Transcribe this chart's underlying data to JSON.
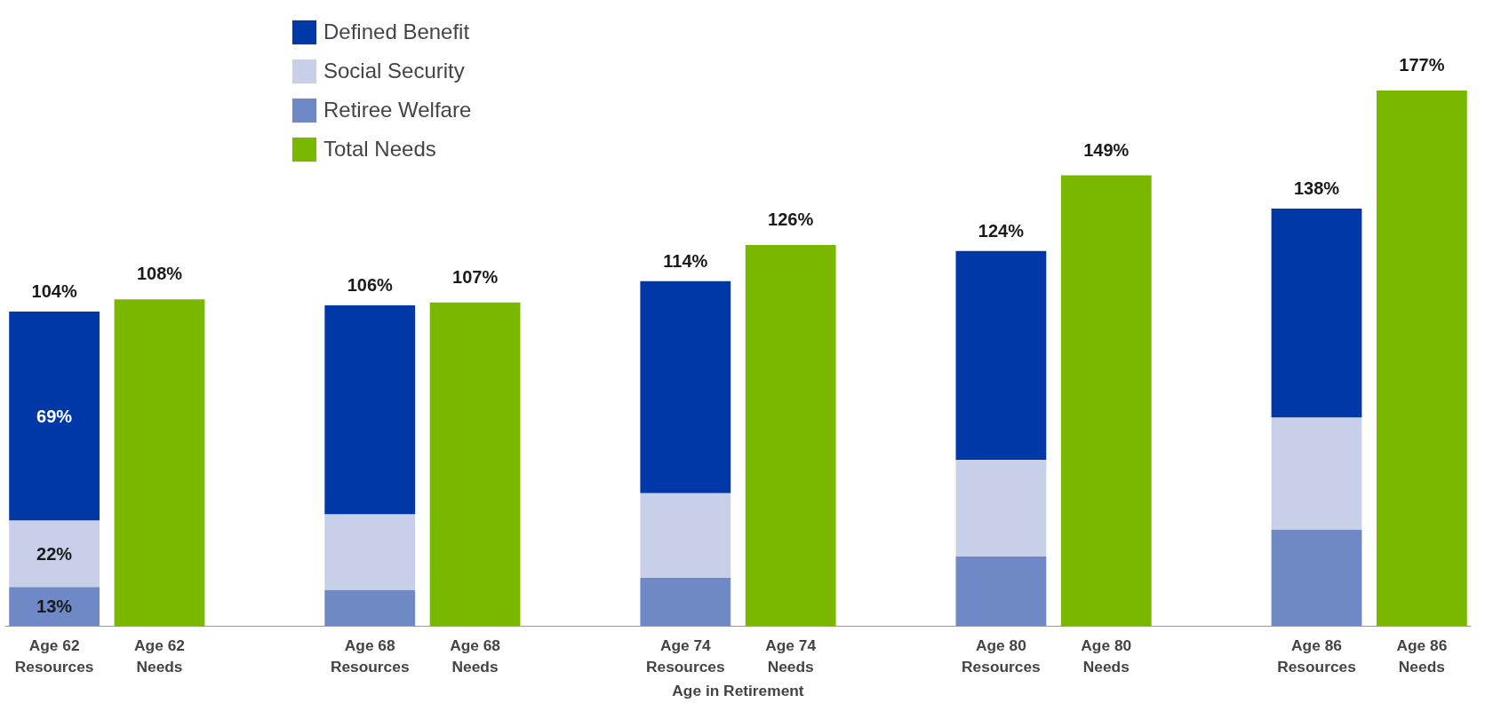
{
  "chart_data": {
    "type": "bar",
    "stacked": true,
    "xlabel": "Age in Retirement",
    "categories": [
      "Age 62\nResources",
      "Age 62\nNeeds",
      "Age 68\nResources",
      "Age 68\nNeeds",
      "Age 74\nResources",
      "Age 74\nNeeds",
      "Age 80\nResources",
      "Age 80\nNeeds",
      "Age 86\nResources",
      "Age 86\nNeeds"
    ],
    "series": [
      {
        "name": "Retiree Welfare",
        "color": "#6f88c6",
        "values": [
          13,
          null,
          12,
          null,
          16,
          null,
          23,
          null,
          32,
          null
        ],
        "value_labels": [
          "13%",
          null,
          null,
          null,
          null,
          null,
          null,
          null,
          null,
          null
        ]
      },
      {
        "name": "Social Security",
        "color": "#c8cfe9",
        "values": [
          22,
          null,
          25,
          null,
          28,
          null,
          32,
          null,
          37,
          null
        ],
        "value_labels": [
          "22%",
          null,
          null,
          null,
          null,
          null,
          null,
          null,
          null,
          null
        ]
      },
      {
        "name": "Defined Benefit",
        "color": "#0038a8",
        "values": [
          69,
          null,
          69,
          null,
          70,
          null,
          69,
          null,
          69,
          null
        ],
        "value_labels": [
          "69%",
          null,
          null,
          null,
          null,
          null,
          null,
          null,
          null,
          null
        ]
      },
      {
        "name": "Total Needs",
        "color": "#7ab800",
        "values": [
          null,
          108,
          null,
          107,
          null,
          126,
          null,
          149,
          null,
          177
        ],
        "value_labels": [
          null,
          "108%",
          null,
          "107%",
          null,
          "126%",
          null,
          "149%",
          null,
          "177%"
        ]
      }
    ],
    "totals": [
      "104%",
      null,
      "106%",
      null,
      "114%",
      null,
      "124%",
      null,
      "138%",
      null
    ],
    "tick_labels": "x",
    "grid": false,
    "legend": "top left"
  }
}
